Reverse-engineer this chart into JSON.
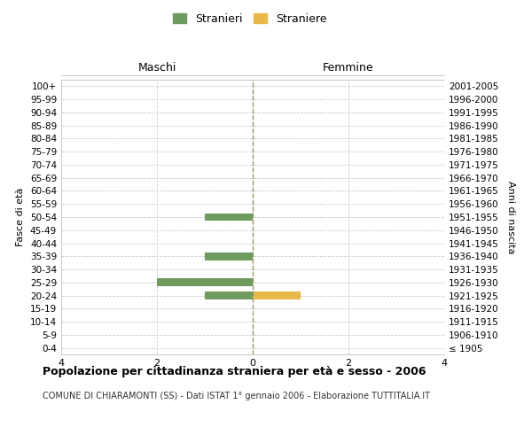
{
  "age_groups": [
    "100+",
    "95-99",
    "90-94",
    "85-89",
    "80-84",
    "75-79",
    "70-74",
    "65-69",
    "60-64",
    "55-59",
    "50-54",
    "45-49",
    "40-44",
    "35-39",
    "30-34",
    "25-29",
    "20-24",
    "15-19",
    "10-14",
    "5-9",
    "0-4"
  ],
  "birth_years": [
    "≤ 1905",
    "1906-1910",
    "1911-1915",
    "1916-1920",
    "1921-1925",
    "1926-1930",
    "1931-1935",
    "1936-1940",
    "1941-1945",
    "1946-1950",
    "1951-1955",
    "1956-1960",
    "1961-1965",
    "1966-1970",
    "1971-1975",
    "1976-1980",
    "1981-1985",
    "1986-1990",
    "1991-1995",
    "1996-2000",
    "2001-2005"
  ],
  "stranieri_maschi": [
    0,
    0,
    0,
    0,
    0,
    0,
    0,
    0,
    0,
    0,
    1,
    0,
    0,
    1,
    0,
    2,
    1,
    0,
    0,
    0,
    0
  ],
  "straniere_femmine": [
    0,
    0,
    0,
    0,
    0,
    0,
    0,
    0,
    0,
    0,
    0,
    0,
    0,
    0,
    0,
    0,
    1,
    0,
    0,
    0,
    0
  ],
  "color_maschi": "#6e9b5e",
  "color_femmine": "#e8b84b",
  "xlim": [
    -4,
    4
  ],
  "xticks": [
    -4,
    -2,
    0,
    2,
    4
  ],
  "xticklabels": [
    "4",
    "2",
    "0",
    "2",
    "4"
  ],
  "title_main": "Popolazione per cittadinanza straniera per età e sesso - 2006",
  "title_sub": "COMUNE DI CHIARAMONTI (SS) - Dati ISTAT 1° gennaio 2006 - Elaborazione TUTTITALIA.IT",
  "ylabel_left": "Fasce di età",
  "ylabel_right": "Anni di nascita",
  "label_maschi": "Maschi",
  "label_femmine": "Femmine",
  "legend_stranieri": "Stranieri",
  "legend_straniere": "Straniere",
  "background_color": "#ffffff",
  "grid_color": "#cccccc",
  "centerline_color": "#999966"
}
